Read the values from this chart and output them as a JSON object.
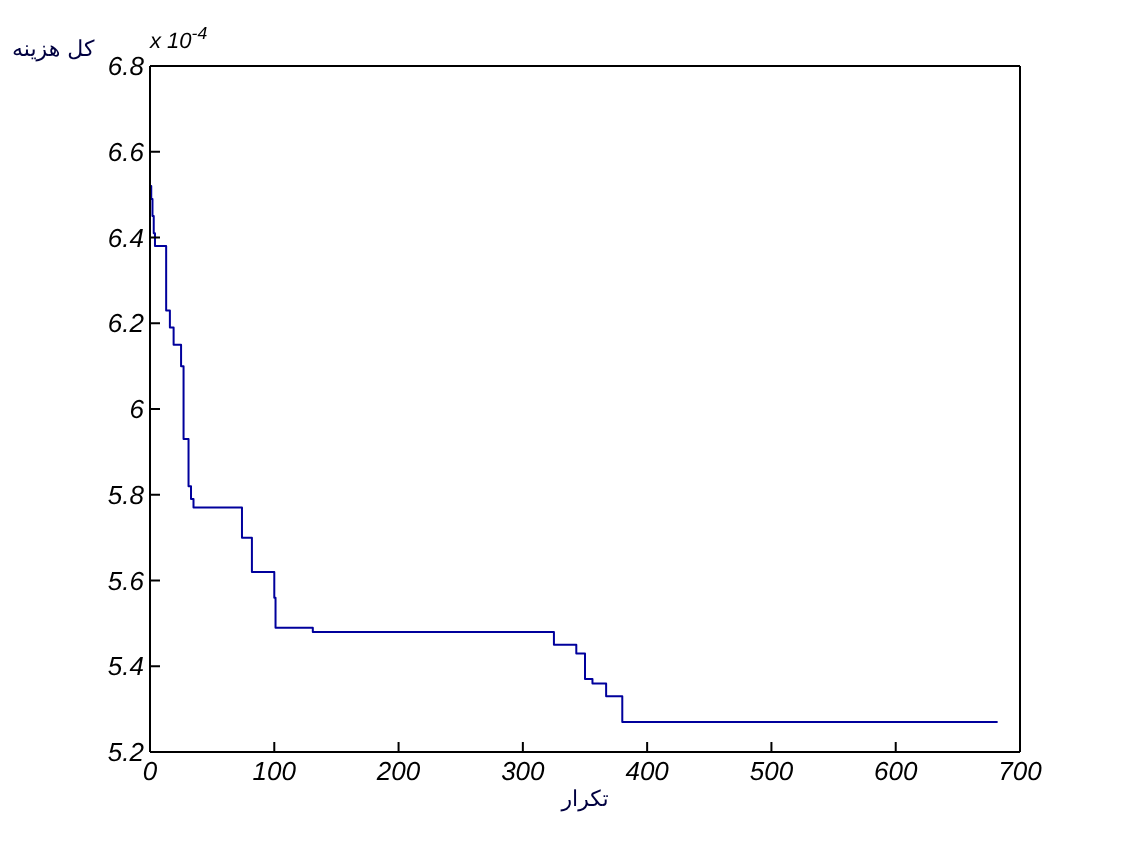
{
  "chart_data": {
    "type": "step",
    "xlabel": "تکرار",
    "ylabel": "کل هزینه",
    "annotations": [
      "x 10$^{-4}$"
    ],
    "x": [
      0,
      1,
      2,
      3,
      4,
      13,
      16,
      19,
      25,
      27,
      31,
      33,
      35,
      74,
      82,
      100,
      101,
      131,
      325,
      343,
      350,
      356,
      367,
      380,
      682
    ],
    "values": [
      6.52,
      6.49,
      6.45,
      6.41,
      6.38,
      6.23,
      6.19,
      6.15,
      6.1,
      5.93,
      5.82,
      5.79,
      5.77,
      5.7,
      5.62,
      5.56,
      5.49,
      5.48,
      5.45,
      5.43,
      5.37,
      5.36,
      5.33,
      5.27,
      5.27
    ],
    "color": "#00009c",
    "line_style": "solid",
    "xlim": [
      0,
      700
    ],
    "xticks": [
      0,
      100,
      200,
      300,
      400,
      500,
      600,
      700
    ],
    "ylim": [
      5.2,
      6.8
    ],
    "yticks": [
      5.2,
      5.4,
      5.6,
      5.8,
      6,
      6.2,
      6.4,
      6.6,
      6.8
    ]
  }
}
